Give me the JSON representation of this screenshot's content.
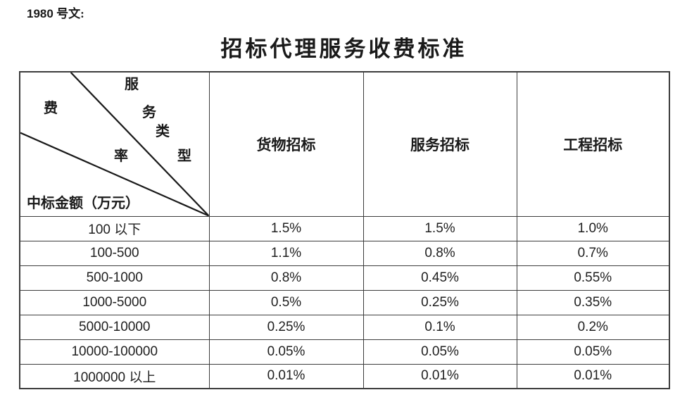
{
  "doc_label": {
    "number": "1980",
    "suffix": "号文:"
  },
  "title": "招标代理服务收费标准",
  "table": {
    "corner": {
      "fee_rate_chars": [
        "费",
        "率"
      ],
      "service_type_chars": [
        "服",
        "务",
        "类",
        "型"
      ],
      "amount_label": "中标金额（万元）"
    },
    "columns": [
      "货物招标",
      "服务招标",
      "工程招标"
    ],
    "rows": [
      {
        "range": "100 以下",
        "values": [
          "1.5%",
          "1.5%",
          "1.0%"
        ]
      },
      {
        "range": "100-500",
        "values": [
          "1.1%",
          "0.8%",
          "0.7%"
        ]
      },
      {
        "range": "500-1000",
        "values": [
          "0.8%",
          "0.45%",
          "0.55%"
        ]
      },
      {
        "range": "1000-5000",
        "values": [
          "0.5%",
          "0.25%",
          "0.35%"
        ]
      },
      {
        "range": "5000-10000",
        "values": [
          "0.25%",
          "0.1%",
          "0.2%"
        ]
      },
      {
        "range": "10000-100000",
        "values": [
          "0.05%",
          "0.05%",
          "0.05%"
        ]
      },
      {
        "range": "1000000 以上",
        "values": [
          "0.01%",
          "0.01%",
          "0.01%"
        ]
      }
    ]
  },
  "colors": {
    "border": "#3c3c3c",
    "text": "#1a1a1a",
    "background": "#ffffff"
  }
}
